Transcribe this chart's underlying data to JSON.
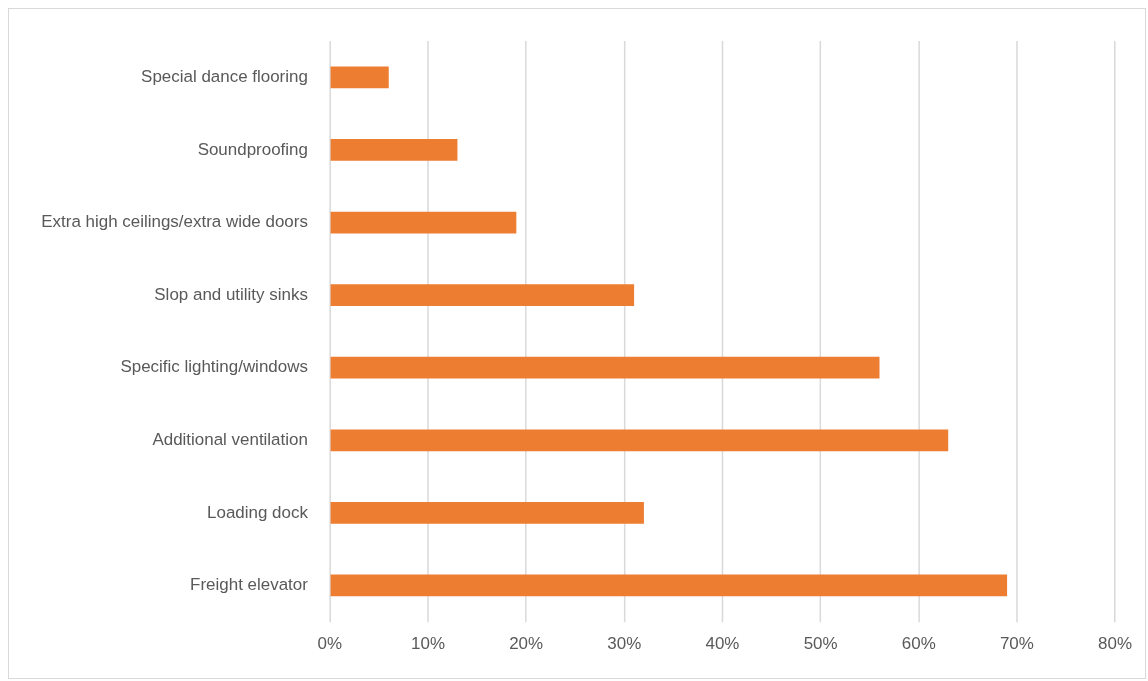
{
  "chart_data": {
    "type": "bar",
    "orientation": "horizontal",
    "categories": [
      "Special dance flooring",
      "Soundproofing",
      "Extra high ceilings/extra wide doors",
      "Slop and utility sinks",
      "Specific lighting/windows",
      "Additional ventilation",
      "Loading dock",
      "Freight elevator"
    ],
    "values": [
      6,
      13,
      19,
      31,
      56,
      63,
      32,
      69
    ],
    "color": "#ed7d31",
    "xlim": [
      0,
      80
    ],
    "xticks": [
      {
        "value": 0,
        "label": "0%"
      },
      {
        "value": 10,
        "label": "10%"
      },
      {
        "value": 20,
        "label": "20%"
      },
      {
        "value": 30,
        "label": "30%"
      },
      {
        "value": 40,
        "label": "40%"
      },
      {
        "value": 50,
        "label": "50%"
      },
      {
        "value": 60,
        "label": "60%"
      },
      {
        "value": 70,
        "label": "70%"
      },
      {
        "value": 80,
        "label": "80%"
      }
    ],
    "grid": "x",
    "legend": false
  }
}
